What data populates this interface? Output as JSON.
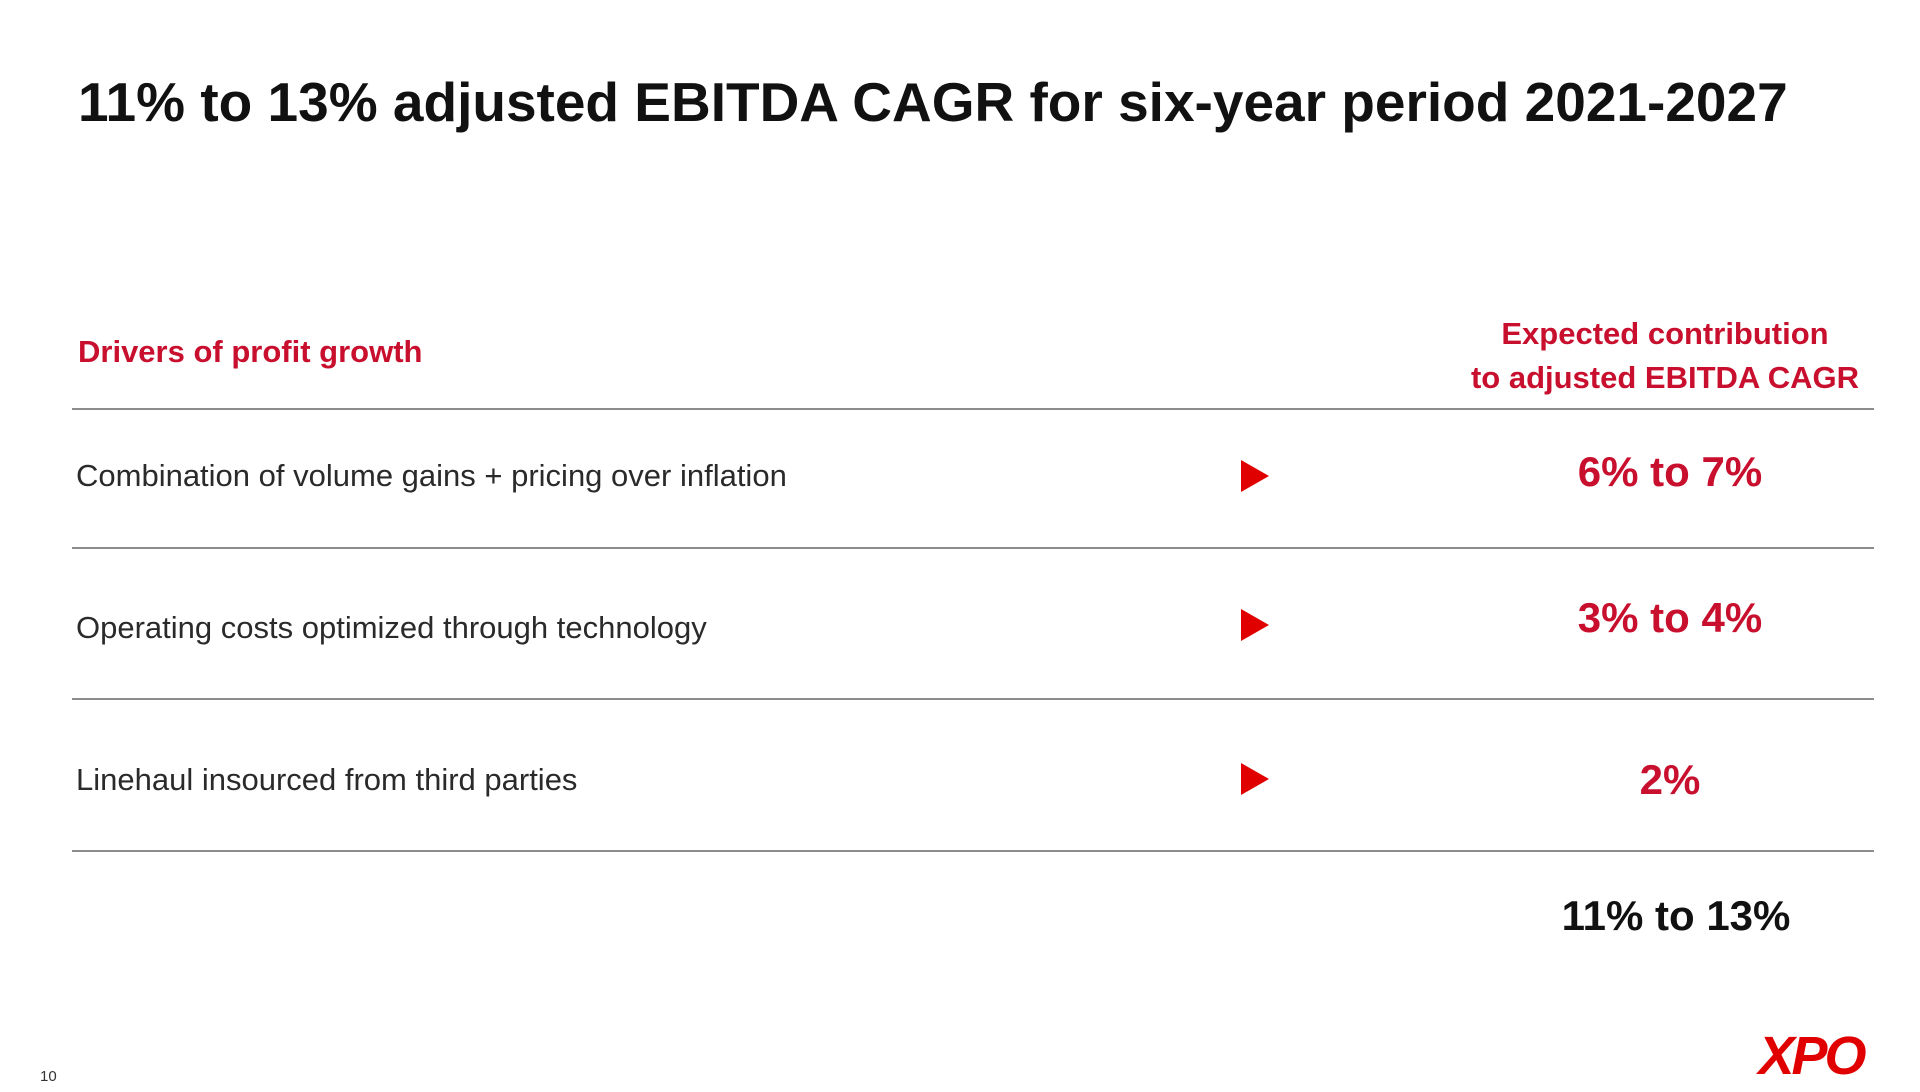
{
  "slide": {
    "title": "11% to 13% adjusted EBITDA CAGR for six-year period 2021-2027",
    "page_number": "10"
  },
  "table": {
    "header_left": "Drivers of profit growth",
    "header_right_line1": "Expected contribution",
    "header_right_line2": "to adjusted EBITDA CAGR",
    "rows": [
      {
        "driver": "Combination of volume gains + pricing over inflation",
        "contribution": "6% to 7%"
      },
      {
        "driver": "Operating costs optimized through technology",
        "contribution": "3% to 4%"
      },
      {
        "driver": "Linehaul insourced from third parties",
        "contribution": "2%"
      }
    ],
    "total": "11% to 13%"
  },
  "logo": {
    "text": "XPO",
    "color": "#e00000"
  },
  "colors": {
    "accent": "#c8102e",
    "arrow": "#e00000",
    "rule": "#8c8c8c"
  },
  "icons": {
    "row_marker": "triangle-right-icon"
  }
}
